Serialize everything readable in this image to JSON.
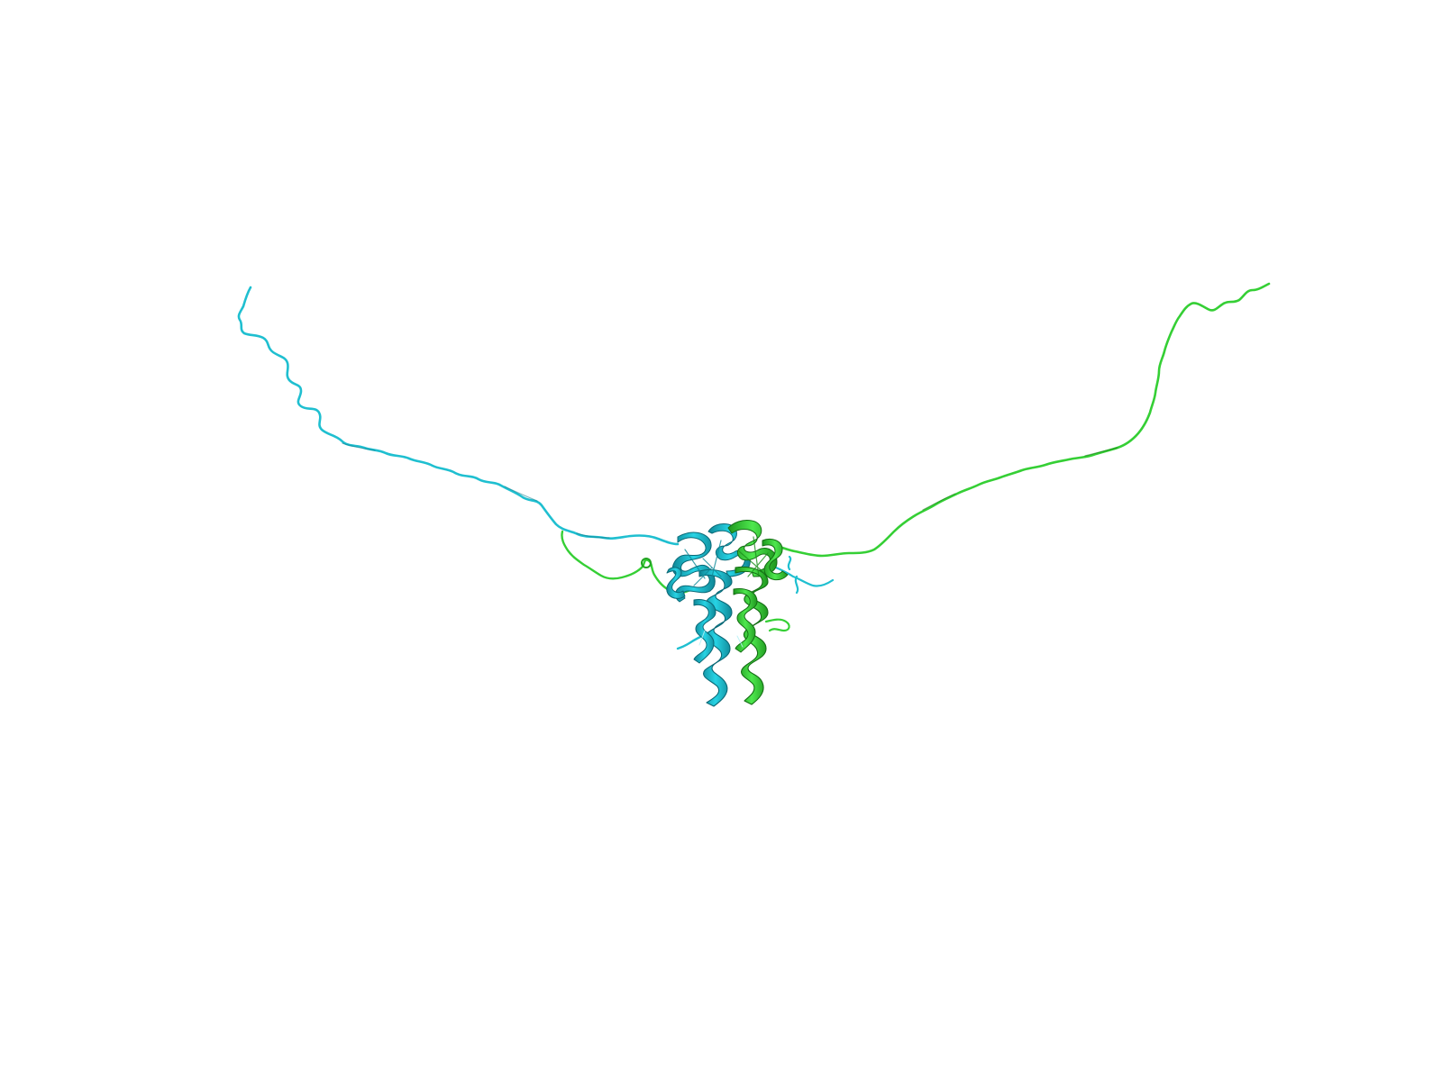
{
  "scene": {
    "background_color": "#ffffff",
    "chains": [
      {
        "name": "chain-a",
        "color": "#22c5d6",
        "shade_color": "#138ea0",
        "dark_color": "#0b5f6e"
      },
      {
        "name": "chain-b",
        "color": "#3fd93f",
        "shade_color": "#22a322",
        "dark_color": "#146d14"
      }
    ]
  }
}
